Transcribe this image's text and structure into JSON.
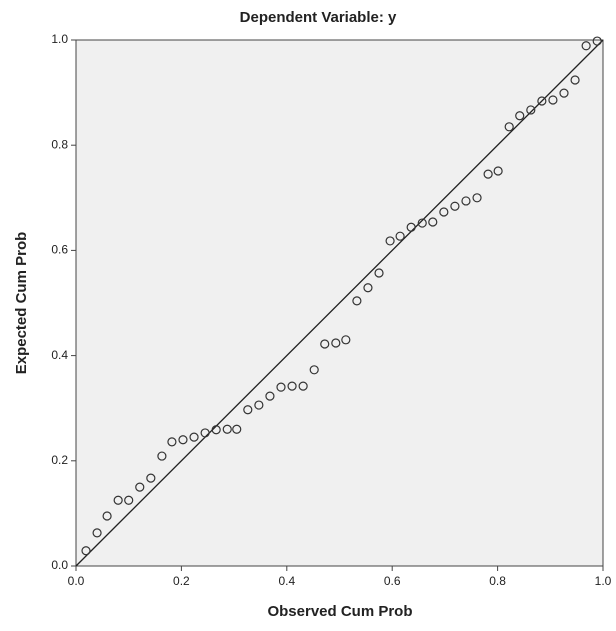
{
  "chart_data": {
    "type": "scatter",
    "title": "Dependent Variable: y",
    "x_label": "Observed Cum Prob",
    "y_label": "Expected Cum Prob",
    "x": [
      0.019,
      0.04,
      0.059,
      0.08,
      0.1,
      0.121,
      0.142,
      0.163,
      0.182,
      0.203,
      0.224,
      0.245,
      0.266,
      0.287,
      0.305,
      0.326,
      0.347,
      0.368,
      0.389,
      0.41,
      0.431,
      0.452,
      0.472,
      0.493,
      0.512,
      0.533,
      0.554,
      0.575,
      0.596,
      0.615,
      0.636,
      0.657,
      0.677,
      0.698,
      0.719,
      0.74,
      0.761,
      0.782,
      0.801,
      0.822,
      0.842,
      0.863,
      0.884,
      0.905,
      0.926,
      0.947,
      0.968,
      0.989
    ],
    "values": [
      0.029,
      0.063,
      0.095,
      0.125,
      0.125,
      0.15,
      0.167,
      0.209,
      0.236,
      0.24,
      0.245,
      0.253,
      0.259,
      0.26,
      0.26,
      0.297,
      0.306,
      0.323,
      0.34,
      0.342,
      0.342,
      0.373,
      0.422,
      0.424,
      0.43,
      0.504,
      0.529,
      0.557,
      0.618,
      0.627,
      0.644,
      0.652,
      0.654,
      0.673,
      0.684,
      0.694,
      0.7,
      0.745,
      0.751,
      0.835,
      0.856,
      0.867,
      0.884,
      0.886,
      0.899,
      0.924,
      0.989,
      0.998
    ],
    "color": "#333333",
    "xlim": [
      0,
      1
    ],
    "ylim": [
      0,
      1
    ],
    "xticks": [
      {
        "value": 0,
        "label": "0.0"
      },
      0.2,
      0.4,
      0.6,
      0.8,
      {
        "value": 1,
        "label": "1.0"
      }
    ],
    "yticks": [
      {
        "value": 0,
        "label": "0.0"
      },
      0.2,
      0.4,
      0.6,
      0.8,
      {
        "value": 1,
        "label": "1.0"
      }
    ],
    "reference_line": true,
    "grid": false
  }
}
